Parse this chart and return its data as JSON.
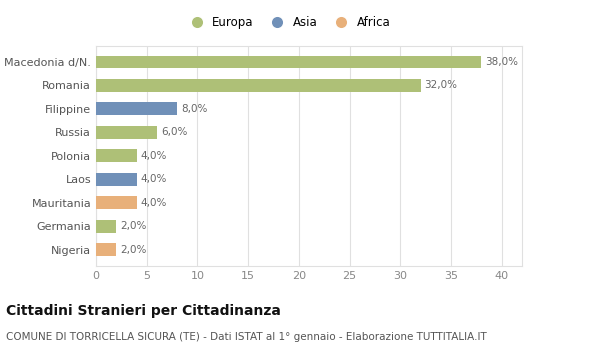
{
  "categories": [
    "Nigeria",
    "Germania",
    "Mauritania",
    "Laos",
    "Polonia",
    "Russia",
    "Filippine",
    "Romania",
    "Macedonia d/N."
  ],
  "values": [
    2.0,
    2.0,
    4.0,
    4.0,
    4.0,
    6.0,
    8.0,
    32.0,
    38.0
  ],
  "colors": [
    "#e8b07a",
    "#aec077",
    "#e8b07a",
    "#7090b8",
    "#aec077",
    "#aec077",
    "#7090b8",
    "#aec077",
    "#aec077"
  ],
  "labels": [
    "2,0%",
    "2,0%",
    "4,0%",
    "4,0%",
    "4,0%",
    "6,0%",
    "8,0%",
    "32,0%",
    "38,0%"
  ],
  "legend": [
    {
      "label": "Europa",
      "color": "#aec077"
    },
    {
      "label": "Asia",
      "color": "#7090b8"
    },
    {
      "label": "Africa",
      "color": "#e8b07a"
    }
  ],
  "xlim": [
    0,
    42
  ],
  "xticks": [
    0,
    5,
    10,
    15,
    20,
    25,
    30,
    35,
    40
  ],
  "title": "Cittadini Stranieri per Cittadinanza",
  "subtitle": "COMUNE DI TORRICELLA SICURA (TE) - Dati ISTAT al 1° gennaio - Elaborazione TUTTITALIA.IT",
  "background_color": "#ffffff",
  "plot_bg_color": "#ffffff",
  "grid_color": "#e0e0e0",
  "bar_height": 0.55,
  "label_fontsize": 7.5,
  "title_fontsize": 10,
  "subtitle_fontsize": 7.5,
  "ytick_fontsize": 8,
  "xtick_fontsize": 8
}
